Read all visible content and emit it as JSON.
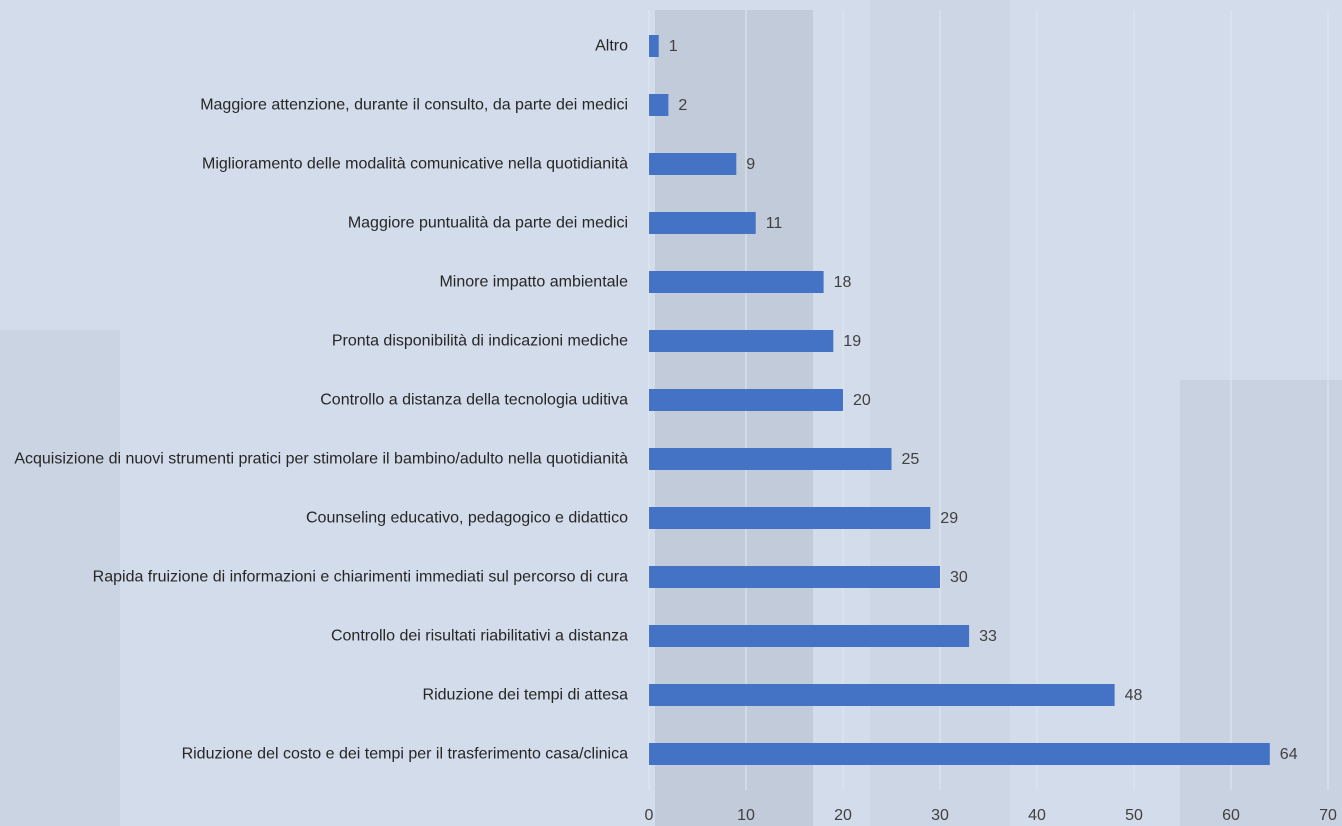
{
  "chart_data": {
    "type": "bar",
    "orientation": "horizontal",
    "categories": [
      "Altro",
      "Maggiore attenzione, durante il consulto, da parte dei medici",
      "Miglioramento delle modalità comunicative nella quotidianità",
      "Maggiore puntualità da parte dei medici",
      "Minore impatto ambientale",
      "Pronta disponibilità di indicazioni mediche",
      "Controllo a distanza della tecnologia uditiva",
      "Acquisizione di nuovi strumenti pratici per stimolare il bambino/adulto nella quotidianità",
      "Counseling educativo, pedagogico e didattico",
      "Rapida fruizione di informazioni e chiarimenti immediati sul percorso di cura",
      "Controllo dei risultati riabilitativi a distanza",
      "Riduzione dei tempi di attesa",
      "Riduzione del costo e dei tempi per il trasferimento casa/clinica"
    ],
    "values": [
      1,
      2,
      9,
      11,
      18,
      19,
      20,
      25,
      29,
      30,
      33,
      48,
      64
    ],
    "color": "#4472c4",
    "xlim": [
      0,
      70
    ],
    "xticks": [
      0,
      10,
      20,
      30,
      40,
      50,
      60,
      70
    ],
    "grid": true
  }
}
